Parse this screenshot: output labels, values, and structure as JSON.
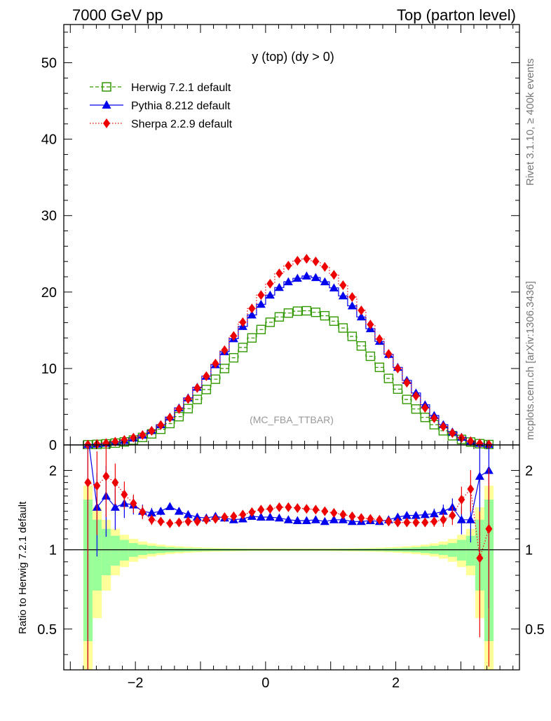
{
  "header": {
    "left": "7000 GeV pp",
    "right": "Top (parton level)"
  },
  "side_labels": {
    "rivet": "Rivet 3.1.10, ≥ 400k events",
    "mcplots": "mcplots.cern.ch [arXiv:1306.3436]"
  },
  "chart_data": {
    "type": "line",
    "title": "y (top) (dy > 0)",
    "watermark": "(MC_FBA_TTBAR)",
    "xlim": [
      -3.1,
      3.9
    ],
    "ylim": [
      0,
      55
    ],
    "x_ticks": [
      -2,
      0,
      2
    ],
    "x_tick_labels": [
      "−2",
      "0",
      "2"
    ],
    "y_ticks": [
      0,
      10,
      20,
      30,
      40,
      50
    ],
    "y_tick_labels": [
      "0",
      "10",
      "20",
      "30",
      "40",
      "50"
    ],
    "legend_position": "top-left",
    "bin_width": 0.14,
    "x": [
      -2.73,
      -2.59,
      -2.45,
      -2.31,
      -2.17,
      -2.03,
      -1.89,
      -1.75,
      -1.61,
      -1.47,
      -1.33,
      -1.19,
      -1.05,
      -0.91,
      -0.77,
      -0.63,
      -0.49,
      -0.35,
      -0.21,
      -0.07,
      0.07,
      0.21,
      0.35,
      0.49,
      0.63,
      0.77,
      0.91,
      1.05,
      1.19,
      1.33,
      1.47,
      1.61,
      1.75,
      1.89,
      2.03,
      2.17,
      2.31,
      2.45,
      2.59,
      2.73,
      2.87,
      3.01,
      3.15,
      3.29,
      3.43
    ],
    "series": [
      {
        "name": "Herwig 7.2.1 default",
        "color": "#339900",
        "marker": "open-square",
        "line": "dashed",
        "values": [
          0.02,
          0.07,
          0.14,
          0.24,
          0.4,
          0.64,
          0.98,
          1.45,
          2.05,
          2.8,
          3.7,
          4.75,
          5.95,
          7.25,
          8.6,
          10.0,
          11.4,
          12.75,
          14.0,
          15.1,
          16.05,
          16.75,
          17.25,
          17.5,
          17.55,
          17.35,
          16.9,
          16.2,
          15.3,
          14.2,
          12.95,
          11.6,
          10.15,
          8.7,
          7.3,
          5.95,
          4.7,
          3.6,
          2.65,
          1.85,
          1.2,
          0.72,
          0.38,
          0.16,
          0.05
        ]
      },
      {
        "name": "Pythia 8.212 default",
        "color": "#0000ee",
        "marker": "filled-triangle",
        "line": "solid",
        "values": [
          0.05,
          0.12,
          0.23,
          0.38,
          0.6,
          0.9,
          1.3,
          1.9,
          2.65,
          3.65,
          4.85,
          6.15,
          7.55,
          9.0,
          10.5,
          12.2,
          13.9,
          15.5,
          17.0,
          18.4,
          19.6,
          20.6,
          21.35,
          21.8,
          22.1,
          21.9,
          21.35,
          20.55,
          19.5,
          18.2,
          16.75,
          15.2,
          13.55,
          11.85,
          10.15,
          8.45,
          6.8,
          5.25,
          3.85,
          2.65,
          1.7,
          1.0,
          0.52,
          0.22,
          0.07
        ]
      },
      {
        "name": "Sherpa 2.2.9 default",
        "color": "#ee0000",
        "marker": "filled-diamond",
        "line": "dotted",
        "values": [
          0.04,
          0.12,
          0.24,
          0.42,
          0.65,
          0.95,
          1.3,
          1.85,
          2.6,
          3.55,
          4.7,
          6.0,
          7.45,
          9.0,
          10.65,
          12.4,
          14.25,
          16.05,
          17.85,
          19.6,
          21.1,
          22.45,
          23.45,
          24.1,
          24.35,
          24.0,
          23.3,
          22.25,
          20.9,
          19.35,
          17.6,
          15.75,
          13.85,
          11.9,
          10.0,
          8.15,
          6.4,
          4.85,
          3.5,
          2.4,
          1.55,
          0.92,
          0.48,
          0.2,
          0.06
        ]
      }
    ],
    "ratio": {
      "ylabel": "Ratio to Herwig 7.2.1 default",
      "ylim": [
        0.35,
        2.5
      ],
      "scale": "log",
      "y_ticks": [
        0.5,
        1,
        2
      ],
      "y_tick_labels": [
        "0.5",
        "1",
        "2"
      ],
      "herwig_band_color": "#99ff99",
      "herwig_band_outer_color": "#ffff99",
      "band_rel_inner": [
        0.55,
        0.3,
        0.2,
        0.13,
        0.09,
        0.06,
        0.045,
        0.035,
        0.028,
        0.022,
        0.018,
        0.015,
        0.013,
        0.011,
        0.01,
        0.009,
        0.008,
        0.008,
        0.007,
        0.007,
        0.007,
        0.007,
        0.007,
        0.007,
        0.007,
        0.007,
        0.007,
        0.007,
        0.008,
        0.008,
        0.009,
        0.01,
        0.011,
        0.013,
        0.015,
        0.018,
        0.022,
        0.028,
        0.035,
        0.045,
        0.06,
        0.09,
        0.13,
        0.3,
        0.55
      ],
      "band_rel_outer": [
        0.75,
        0.45,
        0.3,
        0.2,
        0.14,
        0.1,
        0.075,
        0.058,
        0.046,
        0.037,
        0.031,
        0.026,
        0.022,
        0.019,
        0.017,
        0.015,
        0.014,
        0.013,
        0.012,
        0.012,
        0.012,
        0.012,
        0.012,
        0.012,
        0.012,
        0.012,
        0.012,
        0.013,
        0.013,
        0.014,
        0.015,
        0.017,
        0.019,
        0.022,
        0.026,
        0.031,
        0.037,
        0.046,
        0.058,
        0.075,
        0.1,
        0.14,
        0.2,
        0.45,
        0.75
      ],
      "pythia": [
        2.7,
        1.45,
        1.6,
        1.45,
        1.5,
        1.48,
        1.4,
        1.38,
        1.4,
        1.46,
        1.4,
        1.36,
        1.33,
        1.32,
        1.34,
        1.32,
        1.3,
        1.31,
        1.34,
        1.33,
        1.33,
        1.32,
        1.3,
        1.29,
        1.29,
        1.3,
        1.28,
        1.3,
        1.3,
        1.28,
        1.28,
        1.29,
        1.28,
        1.3,
        1.33,
        1.35,
        1.35,
        1.36,
        1.37,
        1.4,
        1.45,
        1.3,
        1.3,
        1.9,
        2.0
      ],
      "pythia_err": [
        0.9,
        0.35,
        0.3,
        0.18,
        0.12,
        0.08,
        0.06,
        0.045,
        0.035,
        0.028,
        0.022,
        0.018,
        0.015,
        0.013,
        0.011,
        0.01,
        0.009,
        0.008,
        0.008,
        0.007,
        0.007,
        0.007,
        0.007,
        0.007,
        0.007,
        0.007,
        0.007,
        0.008,
        0.008,
        0.009,
        0.01,
        0.011,
        0.013,
        0.015,
        0.018,
        0.022,
        0.028,
        0.035,
        0.045,
        0.06,
        0.08,
        0.12,
        0.18,
        0.5,
        0.7
      ],
      "sherpa": [
        1.8,
        1.75,
        1.9,
        1.8,
        1.62,
        1.5,
        1.39,
        1.3,
        1.28,
        1.26,
        1.27,
        1.28,
        1.28,
        1.3,
        1.31,
        1.33,
        1.34,
        1.36,
        1.39,
        1.42,
        1.43,
        1.45,
        1.45,
        1.44,
        1.43,
        1.42,
        1.4,
        1.38,
        1.36,
        1.34,
        1.32,
        1.31,
        1.3,
        1.28,
        1.27,
        1.27,
        1.27,
        1.27,
        1.28,
        1.3,
        1.35,
        1.55,
        1.7,
        0.93,
        1.2
      ],
      "sherpa_err": [
        0.9,
        0.35,
        0.3,
        0.18,
        0.12,
        0.08,
        0.06,
        0.045,
        0.035,
        0.028,
        0.022,
        0.018,
        0.015,
        0.013,
        0.011,
        0.01,
        0.009,
        0.008,
        0.008,
        0.007,
        0.007,
        0.007,
        0.007,
        0.007,
        0.007,
        0.007,
        0.007,
        0.008,
        0.008,
        0.009,
        0.01,
        0.011,
        0.013,
        0.015,
        0.018,
        0.022,
        0.028,
        0.035,
        0.045,
        0.06,
        0.08,
        0.12,
        0.18,
        0.5,
        0.7
      ]
    }
  }
}
